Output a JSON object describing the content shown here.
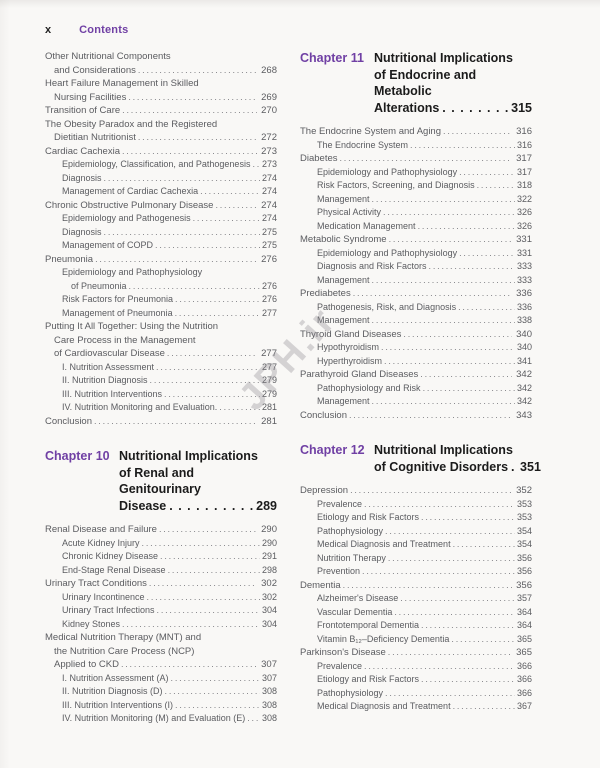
{
  "header": {
    "folio": "x",
    "title": "Contents"
  },
  "watermark": "JPH.ir",
  "colors": {
    "accent": "#7040a4",
    "body_text": "#5b5c60",
    "heading": "#1b1b1b",
    "paper": "#f9f8f6"
  },
  "columns": [
    {
      "blocks": [
        {
          "type": "entry",
          "level": 1,
          "lines": [
            "Other Nutritional Components",
            "and Considerations"
          ],
          "page": "268"
        },
        {
          "type": "entry",
          "level": 1,
          "lines": [
            "Heart Failure Management in Skilled",
            "Nursing Facilities"
          ],
          "page": "269"
        },
        {
          "type": "entry",
          "level": 1,
          "lines": [
            "Transition of Care"
          ],
          "page": "270"
        },
        {
          "type": "entry",
          "level": 1,
          "lines": [
            "The Obesity Paradox and the Registered",
            "Dietitian Nutritionist"
          ],
          "page": "272"
        },
        {
          "type": "entry",
          "level": 1,
          "lines": [
            "Cardiac Cachexia"
          ],
          "page": "273"
        },
        {
          "type": "entry",
          "level": 2,
          "lines": [
            "Epidemiology, Classification, and Pathogenesis"
          ],
          "page": "273"
        },
        {
          "type": "entry",
          "level": 2,
          "lines": [
            "Diagnosis"
          ],
          "page": "274"
        },
        {
          "type": "entry",
          "level": 2,
          "lines": [
            "Management of Cardiac Cachexia"
          ],
          "page": "274"
        },
        {
          "type": "entry",
          "level": 1,
          "lines": [
            "Chronic Obstructive Pulmonary Disease"
          ],
          "page": "274"
        },
        {
          "type": "entry",
          "level": 2,
          "lines": [
            "Epidemiology and Pathogenesis"
          ],
          "page": "274"
        },
        {
          "type": "entry",
          "level": 2,
          "lines": [
            "Diagnosis"
          ],
          "page": "275"
        },
        {
          "type": "entry",
          "level": 2,
          "lines": [
            "Management of COPD"
          ],
          "page": "275"
        },
        {
          "type": "entry",
          "level": 1,
          "lines": [
            "Pneumonia"
          ],
          "page": "276"
        },
        {
          "type": "entry",
          "level": 2,
          "lines": [
            "Epidemiology and Pathophysiology",
            "of Pneumonia"
          ],
          "page": "276"
        },
        {
          "type": "entry",
          "level": 2,
          "lines": [
            "Risk Factors for Pneumonia"
          ],
          "page": "276"
        },
        {
          "type": "entry",
          "level": 2,
          "lines": [
            "Management of Pneumonia"
          ],
          "page": "277"
        },
        {
          "type": "entry",
          "level": 1,
          "lines": [
            "Putting It All Together: Using the Nutrition",
            "Care Process in the Management",
            "of Cardiovascular Disease"
          ],
          "page": "277"
        },
        {
          "type": "entry",
          "level": 2,
          "lines": [
            "I. Nutrition Assessment"
          ],
          "page": "277"
        },
        {
          "type": "entry",
          "level": 2,
          "lines": [
            "II. Nutrition Diagnosis"
          ],
          "page": "279"
        },
        {
          "type": "entry",
          "level": 2,
          "lines": [
            "III. Nutrition Interventions"
          ],
          "page": "279"
        },
        {
          "type": "entry",
          "level": 2,
          "lines": [
            "IV. Nutrition Monitoring and Evaluation."
          ],
          "page": "281"
        },
        {
          "type": "entry",
          "level": 1,
          "lines": [
            "Conclusion"
          ],
          "page": "281"
        },
        {
          "type": "chapter",
          "label": "Chapter 10",
          "title_lines": [
            "Nutritional Implications",
            "of Renal and Genitourinary",
            "Disease"
          ],
          "page": "289"
        },
        {
          "type": "entry",
          "level": 1,
          "lines": [
            "Renal Disease and Failure"
          ],
          "page": "290"
        },
        {
          "type": "entry",
          "level": 2,
          "lines": [
            "Acute Kidney Injury"
          ],
          "page": "290"
        },
        {
          "type": "entry",
          "level": 2,
          "lines": [
            "Chronic Kidney Disease"
          ],
          "page": "291"
        },
        {
          "type": "entry",
          "level": 2,
          "lines": [
            "End-Stage Renal Disease"
          ],
          "page": "298"
        },
        {
          "type": "entry",
          "level": 1,
          "lines": [
            "Urinary Tract Conditions"
          ],
          "page": "302"
        },
        {
          "type": "entry",
          "level": 2,
          "lines": [
            "Urinary Incontinence"
          ],
          "page": "302"
        },
        {
          "type": "entry",
          "level": 2,
          "lines": [
            "Urinary Tract Infections"
          ],
          "page": "304"
        },
        {
          "type": "entry",
          "level": 2,
          "lines": [
            "Kidney Stones"
          ],
          "page": "304"
        },
        {
          "type": "entry",
          "level": 1,
          "lines": [
            "Medical Nutrition Therapy (MNT) and",
            "the Nutrition Care Process (NCP)",
            "Applied to CKD"
          ],
          "page": "307"
        },
        {
          "type": "entry",
          "level": 2,
          "lines": [
            "I. Nutrition Assessment (A)"
          ],
          "page": "307"
        },
        {
          "type": "entry",
          "level": 2,
          "lines": [
            "II. Nutrition Diagnosis (D)"
          ],
          "page": "308"
        },
        {
          "type": "entry",
          "level": 2,
          "lines": [
            "III. Nutrition Interventions (I)"
          ],
          "page": "308"
        },
        {
          "type": "entry",
          "level": 2,
          "lines": [
            "IV. Nutrition Monitoring (M) and Evaluation (E)"
          ],
          "page": "308"
        }
      ]
    },
    {
      "blocks": [
        {
          "type": "chapter",
          "label": "Chapter 11",
          "title_lines": [
            "Nutritional Implications",
            "of Endocrine and Metabolic",
            "Alterations"
          ],
          "page": "315"
        },
        {
          "type": "entry",
          "level": 1,
          "lines": [
            "The Endocrine System and Aging"
          ],
          "page": "316"
        },
        {
          "type": "entry",
          "level": 2,
          "lines": [
            "The Endocrine System"
          ],
          "page": "316"
        },
        {
          "type": "entry",
          "level": 1,
          "lines": [
            "Diabetes"
          ],
          "page": "317"
        },
        {
          "type": "entry",
          "level": 2,
          "lines": [
            "Epidemiology and Pathophysiology"
          ],
          "page": "317"
        },
        {
          "type": "entry",
          "level": 2,
          "lines": [
            "Risk Factors, Screening, and Diagnosis"
          ],
          "page": "318"
        },
        {
          "type": "entry",
          "level": 2,
          "lines": [
            "Management"
          ],
          "page": "322"
        },
        {
          "type": "entry",
          "level": 2,
          "lines": [
            "Physical Activity"
          ],
          "page": "326"
        },
        {
          "type": "entry",
          "level": 2,
          "lines": [
            "Medication Management"
          ],
          "page": "326"
        },
        {
          "type": "entry",
          "level": 1,
          "lines": [
            "Metabolic Syndrome"
          ],
          "page": "331"
        },
        {
          "type": "entry",
          "level": 2,
          "lines": [
            "Epidemiology and Pathophysiology"
          ],
          "page": "331"
        },
        {
          "type": "entry",
          "level": 2,
          "lines": [
            "Diagnosis and Risk Factors"
          ],
          "page": "333"
        },
        {
          "type": "entry",
          "level": 2,
          "lines": [
            "Management"
          ],
          "page": "333"
        },
        {
          "type": "entry",
          "level": 1,
          "lines": [
            "Prediabetes"
          ],
          "page": "336"
        },
        {
          "type": "entry",
          "level": 2,
          "lines": [
            "Pathogenesis, Risk, and Diagnosis"
          ],
          "page": "336"
        },
        {
          "type": "entry",
          "level": 2,
          "lines": [
            "Management"
          ],
          "page": "338"
        },
        {
          "type": "entry",
          "level": 1,
          "lines": [
            "Thyroid Gland Diseases"
          ],
          "page": "340"
        },
        {
          "type": "entry",
          "level": 2,
          "lines": [
            "Hypothyroidism"
          ],
          "page": "340"
        },
        {
          "type": "entry",
          "level": 2,
          "lines": [
            "Hyperthyroidism"
          ],
          "page": "341"
        },
        {
          "type": "entry",
          "level": 1,
          "lines": [
            "Parathyroid Gland Diseases"
          ],
          "page": "342"
        },
        {
          "type": "entry",
          "level": 2,
          "lines": [
            "Pathophysiology and Risk"
          ],
          "page": "342"
        },
        {
          "type": "entry",
          "level": 2,
          "lines": [
            "Management"
          ],
          "page": "342"
        },
        {
          "type": "entry",
          "level": 1,
          "lines": [
            "Conclusion"
          ],
          "page": "343"
        },
        {
          "type": "chapter",
          "label": "Chapter 12",
          "title_lines": [
            "Nutritional Implications",
            "of Cognitive Disorders"
          ],
          "page": "351"
        },
        {
          "type": "entry",
          "level": 1,
          "lines": [
            "Depression"
          ],
          "page": "352"
        },
        {
          "type": "entry",
          "level": 2,
          "lines": [
            "Prevalence"
          ],
          "page": "353"
        },
        {
          "type": "entry",
          "level": 2,
          "lines": [
            "Etiology and Risk Factors"
          ],
          "page": "353"
        },
        {
          "type": "entry",
          "level": 2,
          "lines": [
            "Pathophysiology"
          ],
          "page": "354"
        },
        {
          "type": "entry",
          "level": 2,
          "lines": [
            "Medical Diagnosis and Treatment"
          ],
          "page": "354"
        },
        {
          "type": "entry",
          "level": 2,
          "lines": [
            "Nutrition Therapy"
          ],
          "page": "356"
        },
        {
          "type": "entry",
          "level": 2,
          "lines": [
            "Prevention"
          ],
          "page": "356"
        },
        {
          "type": "entry",
          "level": 1,
          "lines": [
            "Dementia"
          ],
          "page": "356"
        },
        {
          "type": "entry",
          "level": 2,
          "lines": [
            "Alzheimer's Disease"
          ],
          "page": "357"
        },
        {
          "type": "entry",
          "level": 2,
          "lines": [
            "Vascular Dementia"
          ],
          "page": "364"
        },
        {
          "type": "entry",
          "level": 2,
          "lines": [
            "Frontotemporal Dementia"
          ],
          "page": "364"
        },
        {
          "type": "entry",
          "level": 2,
          "lines": [
            "Vitamin B₁₂–Deficiency Dementia"
          ],
          "page": "365"
        },
        {
          "type": "entry",
          "level": 1,
          "lines": [
            "Parkinson's Disease"
          ],
          "page": "365"
        },
        {
          "type": "entry",
          "level": 2,
          "lines": [
            "Prevalence"
          ],
          "page": "366"
        },
        {
          "type": "entry",
          "level": 2,
          "lines": [
            "Etiology and Risk Factors"
          ],
          "page": "366"
        },
        {
          "type": "entry",
          "level": 2,
          "lines": [
            "Pathophysiology"
          ],
          "page": "366"
        },
        {
          "type": "entry",
          "level": 2,
          "lines": [
            "Medical Diagnosis and Treatment"
          ],
          "page": "367"
        }
      ]
    }
  ]
}
